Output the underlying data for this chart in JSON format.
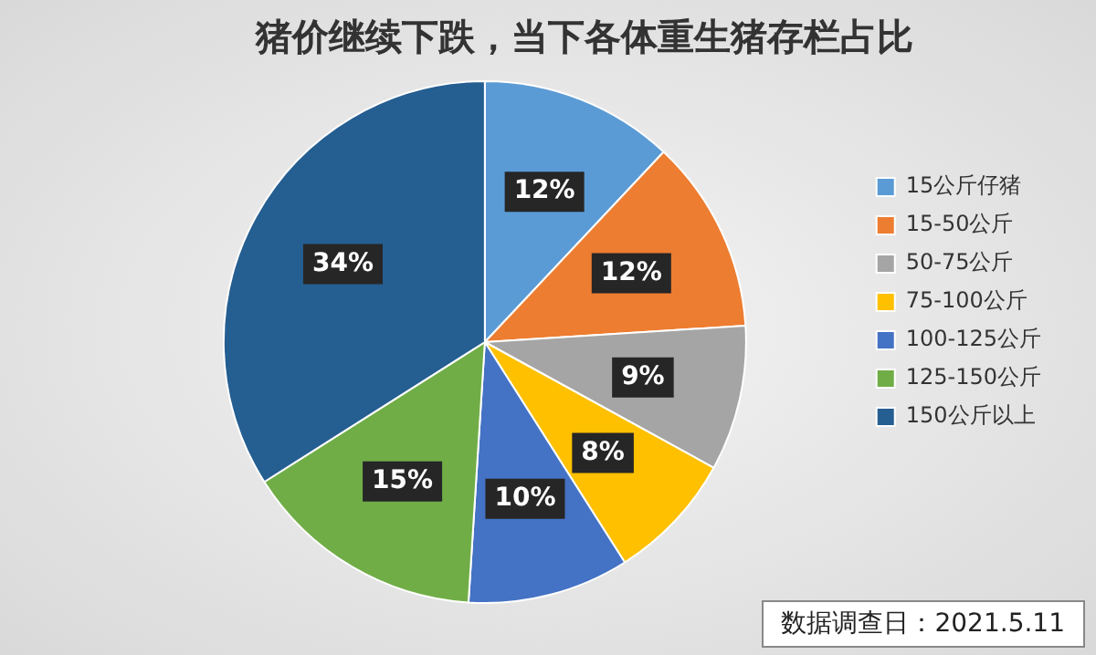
{
  "chart_data": {
    "type": "pie",
    "title": "猪价继续下跌，当下各体重生猪存栏占比",
    "categories": [
      "15公斤仔猪",
      "15-50公斤",
      "50-75公斤",
      "75-100公斤",
      "100-125公斤",
      "125-150公斤",
      "150公斤以上"
    ],
    "values": [
      12,
      12,
      9,
      8,
      10,
      15,
      34
    ],
    "value_labels": [
      "12%",
      "12%",
      "9%",
      "8%",
      "10%",
      "15%",
      "34%"
    ],
    "colors": [
      "#5b9bd5",
      "#ed7d31",
      "#a5a5a5",
      "#ffc000",
      "#4472c4",
      "#70ad47",
      "#255e91"
    ],
    "legend": "right",
    "annotations": [
      "数据调查日：2021.5.11"
    ]
  }
}
